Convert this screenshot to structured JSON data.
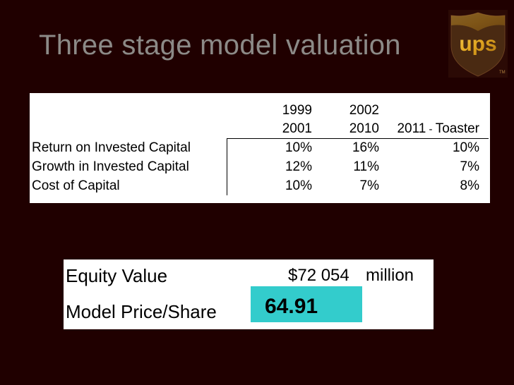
{
  "slide": {
    "title": "Three stage model valuation"
  },
  "logo": {
    "text": "ups",
    "trademark": "TM"
  },
  "valuation_table": {
    "columns": [
      {
        "line1": "1999",
        "line2": "2001"
      },
      {
        "line1": "2002",
        "line2": "2010"
      },
      {
        "line1": "2011",
        "dash": " - ",
        "line2": "Toaster"
      }
    ],
    "rows": [
      {
        "label": "Return on Invested Capital",
        "values": [
          "10%",
          "16%",
          "10%"
        ]
      },
      {
        "label": "Growth in Invested Capital",
        "values": [
          "12%",
          "11%",
          "7%"
        ]
      },
      {
        "label": "Cost of Capital",
        "values": [
          "10%",
          "7%",
          "8%"
        ]
      }
    ]
  },
  "result": {
    "equity_label": "Equity Value",
    "equity_value": "$72 054",
    "equity_unit": "million",
    "price_label": "Model Price/Share",
    "price_value": "64.91",
    "highlight_color": "#33cccc"
  }
}
